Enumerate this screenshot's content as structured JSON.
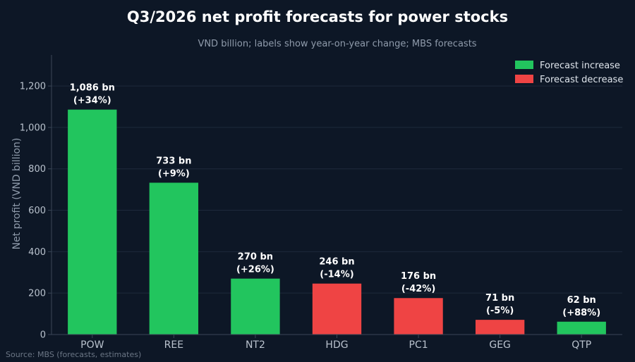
{
  "chart_data": {
    "type": "bar",
    "title": "Q3/2026 net profit forecasts for power stocks",
    "subtitle": "VND billion; labels show year-on-year change; MBS forecasts",
    "xlabel": "",
    "ylabel": "Net profit (VND billion)",
    "ylim": [
      0,
      1350
    ],
    "yticks": [
      0,
      200,
      400,
      600,
      800,
      1000,
      1200
    ],
    "ytick_labels": [
      "0",
      "200",
      "400",
      "600",
      "800",
      "1,000",
      "1,200"
    ],
    "grid": true,
    "legend_position": "top-right",
    "categories": [
      "POW",
      "REE",
      "NT2",
      "HDG",
      "PC1",
      "GEG",
      "QTP"
    ],
    "values": [
      1086,
      733,
      270,
      246,
      176,
      71,
      62
    ],
    "value_labels": [
      "1,086 bn",
      "733 bn",
      "270 bn",
      "246 bn",
      "176 bn",
      "71 bn",
      "62 bn"
    ],
    "change_labels": [
      "(+34%)",
      "(+9%)",
      "(+26%)",
      "(-14%)",
      "(-42%)",
      "(-5%)",
      "(+88%)"
    ],
    "direction": [
      "increase",
      "increase",
      "increase",
      "decrease",
      "decrease",
      "decrease",
      "increase"
    ],
    "legend": [
      {
        "key": "increase",
        "label": "Forecast increase",
        "color": "#22c55e"
      },
      {
        "key": "decrease",
        "label": "Forecast decrease",
        "color": "#ef4444"
      }
    ],
    "source": "Source: MBS (forecasts, estimates)"
  },
  "colors": {
    "background": "#0d1726",
    "grid": "#1e2a3b",
    "axis": "#3a4656",
    "title": "#ffffff",
    "subtitle": "#8f9bab",
    "tick": "#b9c2cd",
    "ylabel": "#8f9bab",
    "bar_label": "#ffffff",
    "source": "#6b7685"
  }
}
